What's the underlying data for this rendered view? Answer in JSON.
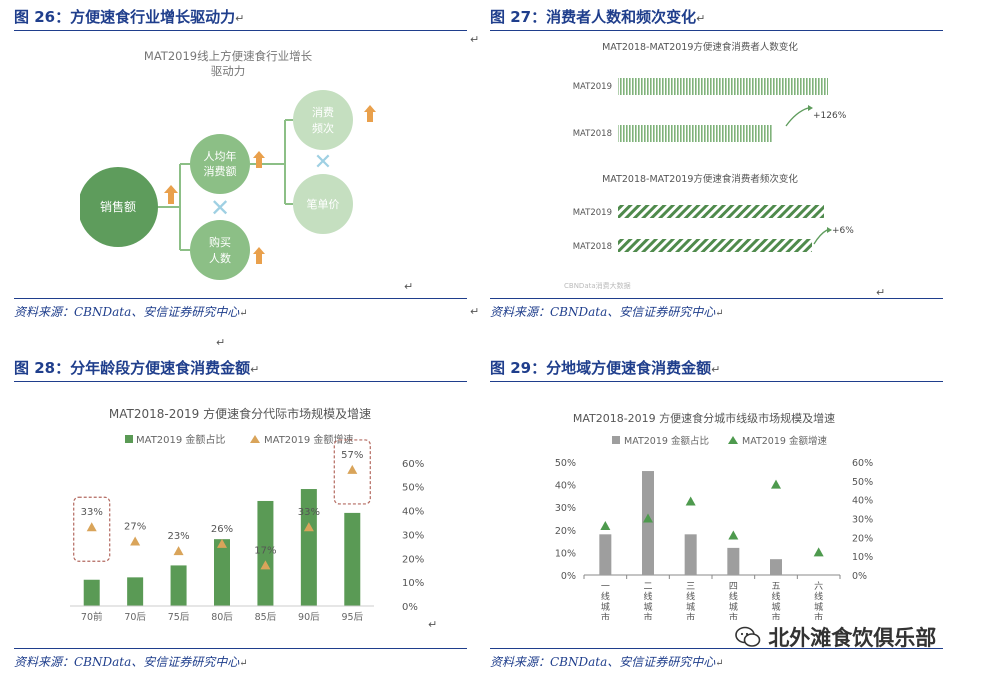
{
  "figures": [
    {
      "title": "图 26：方便速食行业增长驱动力"
    },
    {
      "title": "图 27：消费者人数和频次变化"
    },
    {
      "title": "图 28：分年龄段方便速食消费金额"
    },
    {
      "title": "图 29：分地域方便速食消费金额"
    }
  ],
  "source_text": "资料来源：CBNData、安信证券研究中心",
  "return_mark": "↵",
  "watermark": "北外滩食饮俱乐部",
  "fig26": {
    "chart_title_l1": "MAT2019线上方便速食行业增长",
    "chart_title_l2": "驱动力",
    "node_sales": "销售额",
    "node_per_capita_l1": "人均年",
    "node_per_capita_l2": "消费额",
    "node_buyers_l1": "购买",
    "node_buyers_l2": "人数",
    "node_freq_l1": "消费",
    "node_freq_l2": "频次",
    "node_unit_price": "笔单价",
    "colors": {
      "dark": "#5e9c5c",
      "mid": "#8cbf86",
      "light": "#c5dfc0",
      "arrow": "#e9a04c",
      "cross": "#9fd0e3"
    }
  },
  "fig27": {
    "top_title": "MAT2018-MAT2019方便速食消费者人数变化",
    "bottom_title": "MAT2018-MAT2019方便速食消费者频次变化",
    "top_bars": [
      {
        "label": "MAT2019"
      },
      {
        "label": "MAT2018"
      }
    ],
    "top_change": "+126%",
    "bottom_bars": [
      {
        "label": "MAT2019"
      },
      {
        "label": "MAT2018"
      }
    ],
    "bottom_change": "+6%",
    "footnote": "CBNData消费大数据"
  },
  "chart_data": [
    {
      "type": "bar",
      "title": "MAT2018-2019 方便速食分代际市场规模及增速",
      "categories": [
        "70前",
        "70后",
        "75后",
        "80后",
        "85后",
        "90后",
        "95后"
      ],
      "series": [
        {
          "name": "MAT2019 金额占比",
          "values": [
            11,
            12,
            17,
            28,
            44,
            49,
            39
          ],
          "color": "#5a9a55"
        },
        {
          "name": "MAT2019 金额增速",
          "values": [
            33,
            27,
            23,
            26,
            17,
            33,
            57
          ],
          "color": "#d9a45a"
        }
      ],
      "growth_labels": [
        "33%",
        "27%",
        "23%",
        "26%",
        "17%",
        "33%",
        "57%"
      ],
      "y2_ticks": [
        "0%",
        "10%",
        "20%",
        "30%",
        "40%",
        "50%",
        "60%"
      ],
      "ylim": [
        0,
        62
      ],
      "y2lim": [
        0,
        62
      ],
      "highlighted": [
        "70前",
        "95后"
      ]
    },
    {
      "type": "bar",
      "title": "MAT2018-2019 方便速食分城市线级市场规模及增速",
      "categories": [
        "一线城市",
        "二线城市",
        "三线城市",
        "四线城市",
        "五线城市",
        "六线城市"
      ],
      "series": [
        {
          "name": "MAT2019 金额占比",
          "values": [
            18,
            46,
            18,
            12,
            7,
            0
          ],
          "color": "#9e9e9e"
        },
        {
          "name": "MAT2019 金额增速",
          "values": [
            26,
            30,
            39,
            21,
            48,
            12
          ],
          "color": "#4e9a4e"
        }
      ],
      "y_ticks": [
        "0%",
        "10%",
        "20%",
        "30%",
        "40%",
        "50%"
      ],
      "y2_ticks": [
        "0%",
        "10%",
        "20%",
        "30%",
        "40%",
        "50%",
        "60%"
      ],
      "ylim": [
        0,
        50
      ],
      "y2lim": [
        0,
        60
      ]
    }
  ]
}
